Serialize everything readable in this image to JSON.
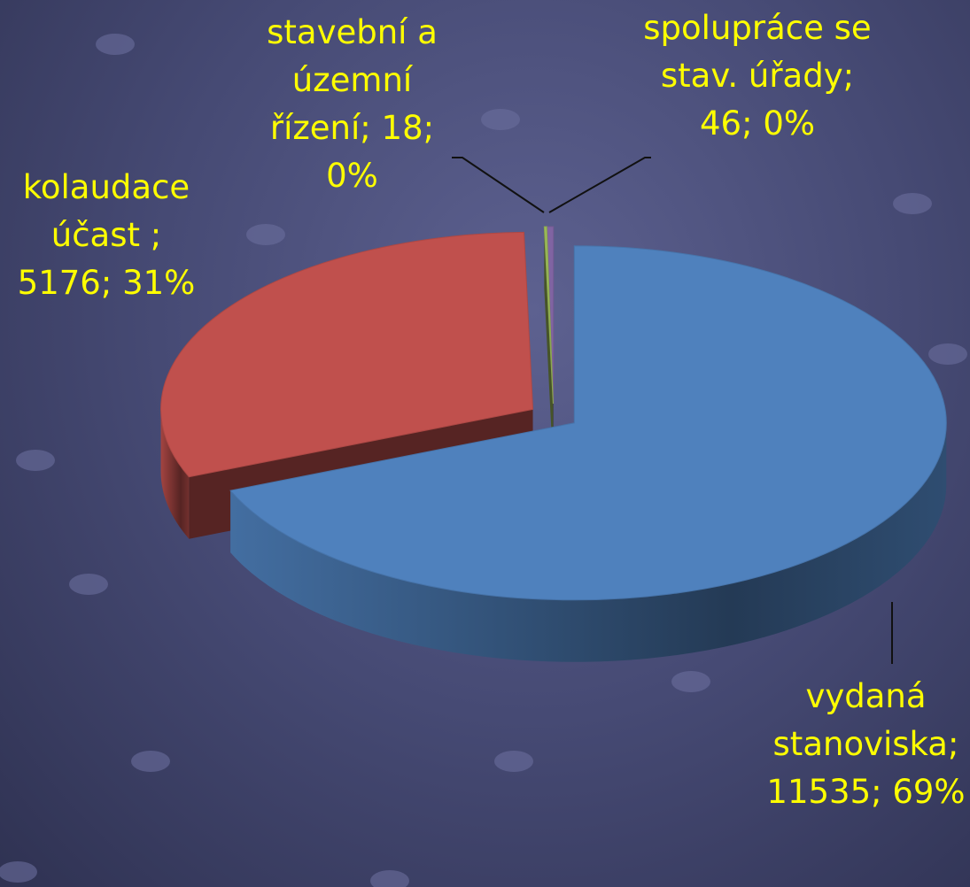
{
  "chart_data": {
    "type": "pie3d",
    "categories": [
      "vydaná stanoviska",
      "kolaudace účast ",
      "stavební a územní řízení",
      "spolupráce se stav. úřady"
    ],
    "values": [
      11535,
      5176,
      18,
      46
    ],
    "percent_labels": [
      "69%",
      "31%",
      "0%",
      "0%"
    ],
    "label_separator": "; ",
    "colors": [
      "#4f81bd",
      "#c0504d",
      "#9bbb59",
      "#8064a2"
    ],
    "label_color": "#ffff00"
  }
}
